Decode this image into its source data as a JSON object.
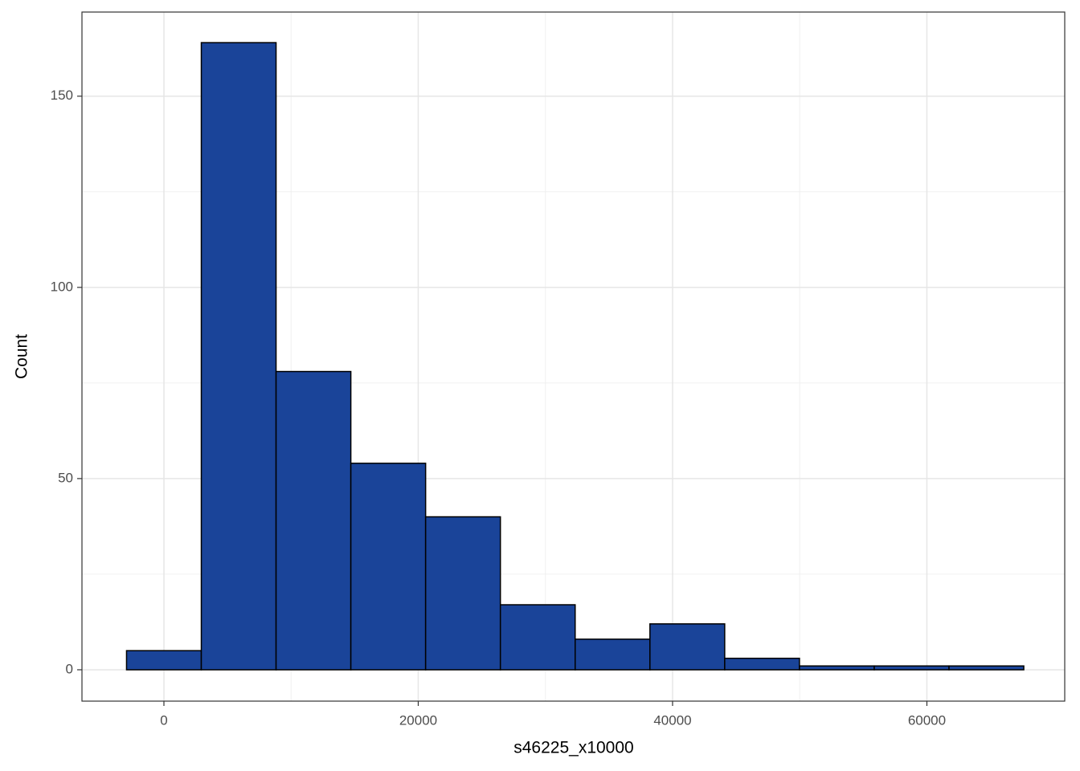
{
  "chart_data": {
    "type": "histogram",
    "x_label": "s46225_x10000",
    "y_label": "Count",
    "bins": [
      -2940,
      2940,
      8820,
      14700,
      20580,
      26460,
      32340,
      38220,
      44100,
      49980,
      55860,
      61740,
      67620
    ],
    "counts": [
      5,
      164,
      78,
      54,
      40,
      17,
      8,
      12,
      3,
      1,
      1,
      1
    ],
    "color": "#1a4499",
    "edge_color": "#000000",
    "xlim": [
      -6445,
      70840
    ],
    "ylim": [
      -8.2,
      172
    ],
    "xticks": [
      0,
      20000,
      40000,
      60000
    ],
    "yticks": [
      0,
      50,
      100,
      150
    ],
    "x_minor_grid": [
      10000,
      30000,
      50000
    ],
    "y_minor_grid": [
      25,
      75,
      125
    ],
    "grid": true
  }
}
